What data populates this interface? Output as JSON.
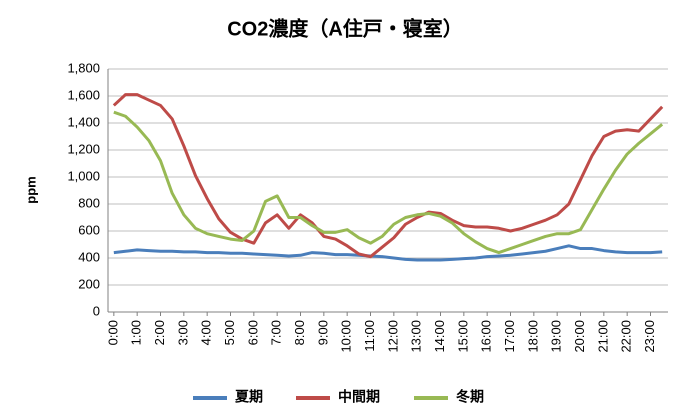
{
  "chart_data": {
    "type": "line",
    "title": "CO2濃度（A住戸・寝室）",
    "y_label": "ppm",
    "categories": [
      "0:00",
      null,
      "1:00",
      null,
      "2:00",
      null,
      "3:00",
      null,
      "4:00",
      null,
      "5:00",
      null,
      "6:00",
      null,
      "7:00",
      null,
      "8:00",
      null,
      "9:00",
      null,
      "10:00",
      null,
      "11:00",
      null,
      "12:00",
      null,
      "13:00",
      null,
      "14:00",
      null,
      "15:00",
      null,
      "16:00",
      null,
      "17:00",
      null,
      "18:00",
      null,
      "19:00",
      null,
      "20:00",
      null,
      "21:00",
      null,
      "22:00",
      null,
      "23:00",
      null
    ],
    "series": [
      {
        "name": "夏期",
        "color": "#4a7ebb",
        "values": [
          440,
          450,
          460,
          455,
          450,
          450,
          445,
          445,
          440,
          440,
          435,
          435,
          430,
          425,
          420,
          415,
          420,
          440,
          435,
          425,
          425,
          420,
          415,
          410,
          400,
          390,
          385,
          385,
          385,
          390,
          395,
          400,
          410,
          415,
          420,
          430,
          440,
          450,
          470,
          490,
          470,
          470,
          455,
          445,
          440,
          440,
          440,
          445
        ]
      },
      {
        "name": "中間期",
        "color": "#be4b48",
        "values": [
          1530,
          1610,
          1610,
          1570,
          1530,
          1430,
          1230,
          1010,
          840,
          690,
          590,
          540,
          510,
          660,
          720,
          620,
          720,
          660,
          560,
          540,
          490,
          430,
          410,
          480,
          550,
          650,
          700,
          740,
          730,
          680,
          640,
          630,
          630,
          620,
          600,
          620,
          650,
          680,
          720,
          800,
          980,
          1160,
          1300,
          1340,
          1350,
          1340,
          1430,
          1520
        ]
      },
      {
        "name": "冬期",
        "color": "#98b954",
        "values": [
          1480,
          1450,
          1370,
          1270,
          1120,
          880,
          720,
          620,
          580,
          560,
          540,
          530,
          600,
          820,
          860,
          700,
          700,
          640,
          590,
          590,
          610,
          550,
          510,
          560,
          650,
          700,
          720,
          730,
          710,
          660,
          580,
          520,
          470,
          440,
          470,
          500,
          530,
          560,
          580,
          580,
          610,
          760,
          910,
          1050,
          1170,
          1250,
          1320,
          1390
        ]
      }
    ],
    "ylim": [
      0,
      1800
    ],
    "yticks": [
      0,
      200,
      400,
      600,
      800,
      {
        "value": 1000,
        "label": "1,000"
      },
      {
        "value": 1200,
        "label": "1,200"
      },
      {
        "value": 1400,
        "label": "1,400"
      },
      {
        "value": 1600,
        "label": "1,600"
      },
      {
        "value": 1800,
        "label": "1,800"
      }
    ],
    "grid": true,
    "legend": "bottom"
  }
}
